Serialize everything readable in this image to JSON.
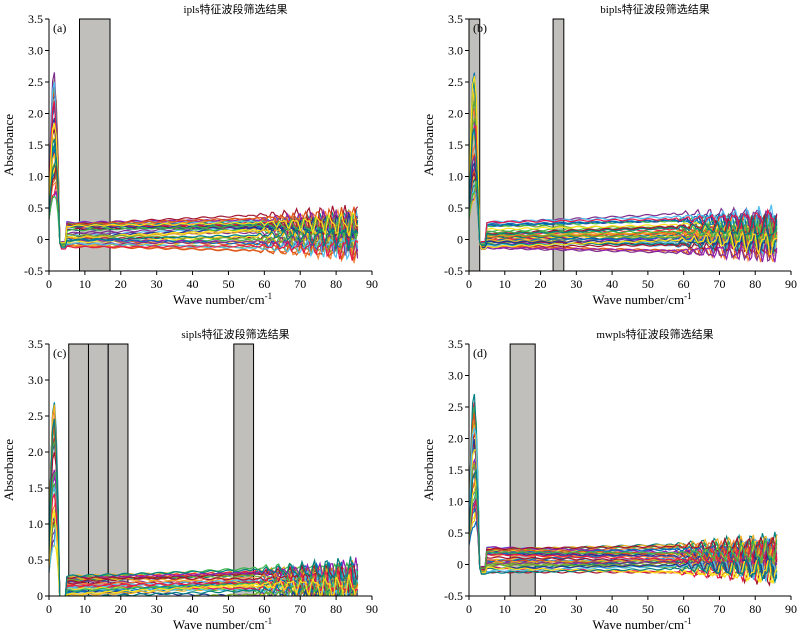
{
  "figure": {
    "background": "#ffffff",
    "band_color": "#c0bfbc",
    "band_outline": "#000000",
    "spectrum_count": 40,
    "palette": [
      "#0072bd",
      "#d95319",
      "#edb120",
      "#7e2f8e",
      "#77ac30",
      "#4dbeee",
      "#a2142f",
      "#1f3a93",
      "#e6194b",
      "#3cb44b",
      "#ffe119",
      "#008080",
      "#f58231",
      "#911eb4"
    ]
  },
  "chart_data": [
    {
      "type": "line",
      "panel": "(a)",
      "title": "ipls特征波段筛选结果",
      "xlabel": "Wave number/cm",
      "xlabel_sup": "-1",
      "ylabel": "Absorbance",
      "xlim": [
        0,
        90
      ],
      "ylim": [
        -0.5,
        3.5
      ],
      "xticks": [
        "0",
        "10",
        "20",
        "30",
        "40",
        "50",
        "60",
        "70",
        "80",
        "90"
      ],
      "yticks": [
        "-0.5",
        "0",
        "0.5",
        "1.0",
        "1.5",
        "2.0",
        "2.5",
        "3.0",
        "3.5"
      ],
      "selected_intervals": [
        [
          8.5,
          17
        ]
      ],
      "x_range": [
        0,
        86
      ],
      "peak_absorbance": 2.75,
      "baseline_range": [
        -0.25,
        0.5
      ]
    },
    {
      "type": "line",
      "panel": "(b)",
      "title": "bipls特征波段筛选结果",
      "xlabel": "Wave number/cm",
      "xlabel_sup": "-1",
      "ylabel": "Absorbance",
      "xlim": [
        0,
        90
      ],
      "ylim": [
        -0.5,
        3.5
      ],
      "xticks": [
        "0",
        "10",
        "20",
        "30",
        "40",
        "50",
        "60",
        "70",
        "80",
        "90"
      ],
      "yticks": [
        "-0.5",
        "0",
        "0.5",
        "1.0",
        "1.5",
        "2.0",
        "2.5",
        "3.0",
        "3.5"
      ],
      "selected_intervals": [
        [
          0,
          3
        ],
        [
          23.5,
          26.5
        ]
      ],
      "x_range": [
        0,
        86
      ],
      "peak_absorbance": 2.75,
      "baseline_range": [
        -0.25,
        0.5
      ]
    },
    {
      "type": "line",
      "panel": "(c)",
      "title": "sipls特征波段筛选结果",
      "xlabel": "Wave number/cm",
      "xlabel_sup": "-1",
      "ylabel": "Absorbance",
      "xlim": [
        0,
        90
      ],
      "ylim": [
        0,
        3.5
      ],
      "xticks": [
        "0",
        "10",
        "20",
        "30",
        "40",
        "50",
        "60",
        "70",
        "80",
        "90"
      ],
      "yticks": [
        "0",
        "0.5",
        "1.0",
        "1.5",
        "2.0",
        "2.5",
        "3.0",
        "3.5"
      ],
      "selected_intervals": [
        [
          5.5,
          11
        ],
        [
          11,
          16.5
        ],
        [
          16.5,
          22
        ],
        [
          51.5,
          57
        ]
      ],
      "x_range": [
        0,
        86
      ],
      "peak_absorbance": 2.75,
      "baseline_range": [
        -0.25,
        0.5
      ]
    },
    {
      "type": "line",
      "panel": "(d)",
      "title": "mwpls特征波段筛选结果",
      "xlabel": "Wave number/cm",
      "xlabel_sup": "-1",
      "ylabel": "Absorbance",
      "xlim": [
        0,
        90
      ],
      "ylim": [
        -0.5,
        3.5
      ],
      "xticks": [
        "0",
        "10",
        "20",
        "30",
        "40",
        "50",
        "60",
        "70",
        "80",
        "90"
      ],
      "yticks": [
        "-0.5",
        "0",
        "0.5",
        "1.0",
        "1.5",
        "2.0",
        "2.5",
        "3.0",
        "3.5"
      ],
      "selected_intervals": [
        [
          11.5,
          18.5
        ]
      ],
      "x_range": [
        0,
        86
      ],
      "peak_absorbance": 2.75,
      "baseline_range": [
        -0.25,
        0.5
      ]
    }
  ]
}
